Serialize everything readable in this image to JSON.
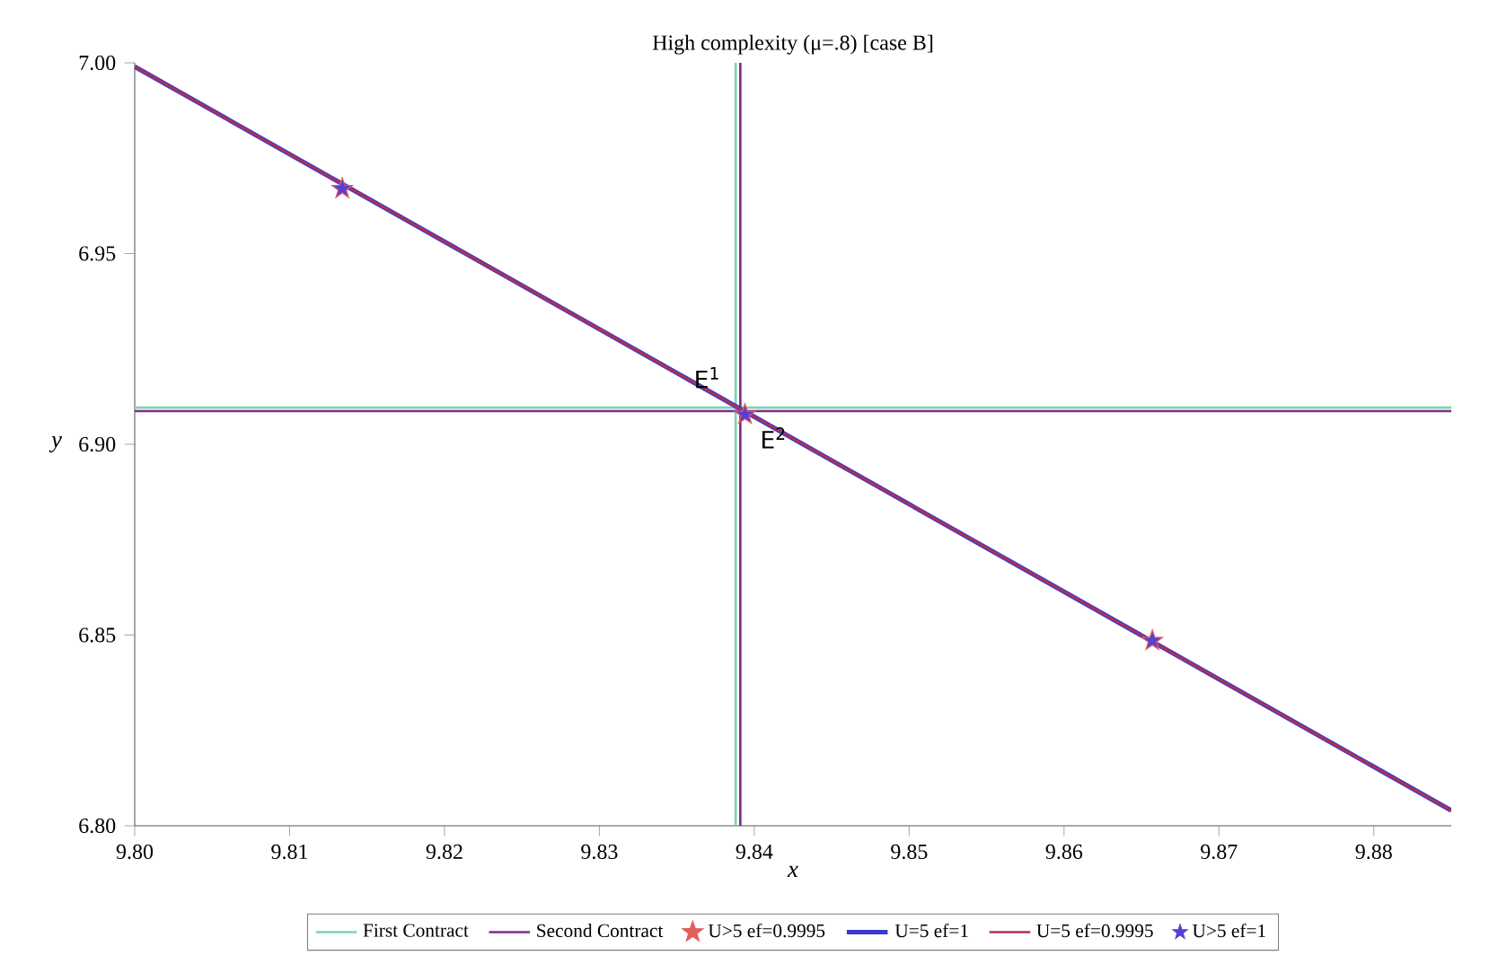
{
  "chart_data": {
    "type": "line",
    "title": "High complexity (μ=.8) [case B]",
    "xlabel": "x",
    "ylabel": "y",
    "xlim": [
      9.8,
      9.885
    ],
    "ylim": [
      6.8,
      7.0
    ],
    "xticks": [
      {
        "value": 9.8,
        "label": "9.80"
      },
      9.81,
      9.82,
      9.83,
      9.84,
      9.85,
      9.86,
      9.87,
      9.88
    ],
    "yticks": [
      {
        "value": 6.8,
        "label": "6.80"
      },
      6.85,
      {
        "value": 6.9,
        "label": "6.90"
      },
      6.95,
      {
        "value": 7.0,
        "label": "7.00"
      }
    ],
    "grid": false,
    "legend": "bottom",
    "line_style": "solid",
    "series": [
      {
        "name": "First Contract",
        "marker": "none",
        "color": "#7fd3b0",
        "x": [
          9.8388,
          9.8388,
          9.8388,
          9.8,
          9.885
        ],
        "values": [
          6.8,
          7.0,
          6.9096,
          6.9096,
          6.9096
        ]
      },
      {
        "name": "Second Contract",
        "marker": "none",
        "color": "#7b2d8b",
        "x": [
          9.8391,
          9.8391,
          9.8391,
          9.8,
          9.885
        ],
        "values": [
          6.8,
          7.0,
          6.9087,
          6.9087,
          6.9087
        ]
      },
      {
        "name": "U>5 ef=0.9995",
        "type": "scatter",
        "marker": "star",
        "color": "#e06060",
        "x": [
          9.8134,
          9.8394,
          9.8657
        ],
        "values": [
          6.967,
          6.9078,
          6.8485
        ]
      },
      {
        "name": "U=5 ef=1",
        "marker": "none",
        "color": "#3a3acc",
        "x": [
          9.8,
          9.885
        ],
        "values": [
          6.999,
          6.804
        ]
      },
      {
        "name": "U=5 ef=0.9995",
        "marker": "none",
        "color": "#b03050",
        "x": [
          9.8,
          9.885
        ],
        "values": [
          6.999,
          6.804
        ]
      },
      {
        "name": "U>5 ef=1",
        "type": "scatter",
        "marker": "star",
        "color": "#5a3fd0",
        "x": [
          9.8134,
          9.8394,
          9.8657
        ],
        "values": [
          6.967,
          6.9078,
          6.8485
        ]
      }
    ],
    "annotations": [
      "E$^{1}$",
      "E$^{2}$"
    ]
  }
}
